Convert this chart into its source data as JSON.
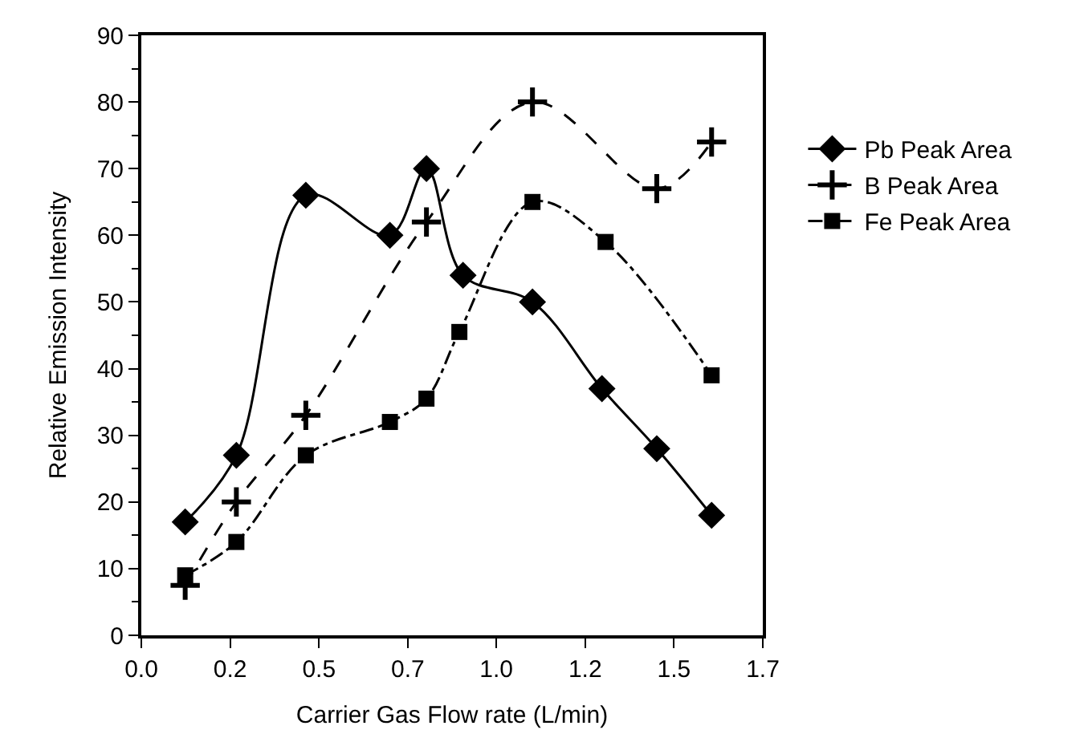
{
  "chart_data": {
    "type": "line",
    "xlabel": "Carrier Gas Flow rate (L/min)",
    "ylabel": "Relative Emission Intensity",
    "xlim": [
      0,
      1.7
    ],
    "ylim": [
      0,
      90
    ],
    "xticks": [
      {
        "value": 0,
        "label": "0.0"
      },
      {
        "value": 0.243,
        "label": "0.2"
      },
      {
        "value": 0.486,
        "label": "0.5"
      },
      {
        "value": 0.729,
        "label": "0.7"
      },
      {
        "value": 0.971,
        "label": "1.0"
      },
      {
        "value": 1.214,
        "label": "1.2"
      },
      {
        "value": 1.457,
        "label": "1.5"
      },
      {
        "value": 1.7,
        "label": "1.7"
      }
    ],
    "yticks": [
      0,
      10,
      20,
      30,
      40,
      50,
      60,
      70,
      80,
      90
    ],
    "legend": "right",
    "series": [
      {
        "name": "Pb Peak Area",
        "color": "#000000",
        "marker": "diamond",
        "line_style": "solid",
        "x": [
          0.12,
          0.26,
          0.45,
          0.68,
          0.78,
          0.88,
          1.07,
          1.26,
          1.41,
          1.56
        ],
        "values": [
          17,
          27,
          66,
          60,
          70,
          54,
          50,
          37,
          28,
          18
        ]
      },
      {
        "name": "B Peak Area",
        "color": "#000000",
        "marker": "cross",
        "line_style": "dashed",
        "x": [
          0.12,
          0.26,
          0.45,
          0.78,
          1.07,
          1.41,
          1.56
        ],
        "values": [
          7.5,
          20,
          33,
          62,
          80,
          67,
          74
        ]
      },
      {
        "name": "Fe Peak Area",
        "color": "#000000",
        "marker": "square",
        "line_style": "dashdot",
        "x": [
          0.12,
          0.26,
          0.45,
          0.68,
          0.78,
          0.87,
          1.07,
          1.27,
          1.56
        ],
        "values": [
          9,
          14,
          27,
          32,
          35.5,
          45.5,
          65,
          59,
          39
        ]
      }
    ]
  }
}
